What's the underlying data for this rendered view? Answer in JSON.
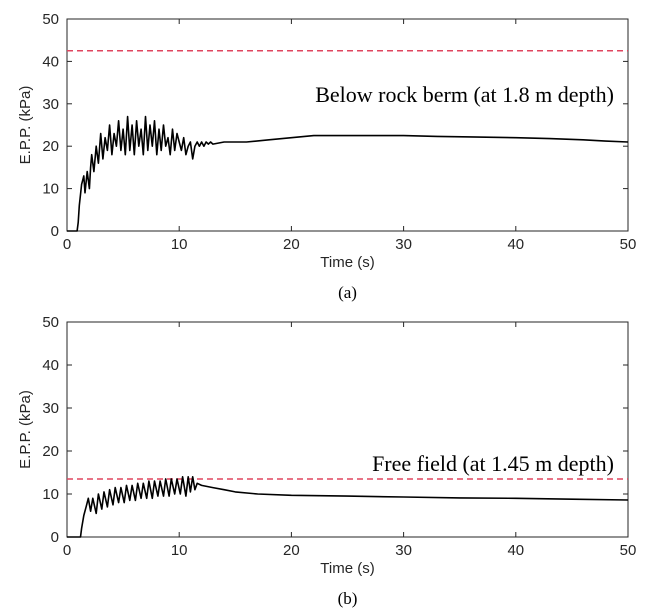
{
  "chart_data": [
    {
      "type": "line",
      "panel_id": "a",
      "caption": "(a)",
      "annotation": "Below rock berm (at 1.8 m depth)",
      "xlabel": "Time (s)",
      "ylabel": "E.P.P. (kPa)",
      "xlim": [
        0,
        50
      ],
      "ylim": [
        0,
        50
      ],
      "xticks": [
        "0",
        "10",
        "20",
        "30",
        "40",
        "50"
      ],
      "yticks": [
        "0",
        "10",
        "20",
        "30",
        "40",
        "50"
      ],
      "grid": false,
      "colors": {
        "series": "#000000",
        "reference": "#e0455f"
      },
      "reference_line": {
        "y": 42.5,
        "style": "dashed"
      },
      "series": [
        {
          "x": [
            0,
            0.9,
            1.0,
            1.1,
            1.3,
            1.5,
            1.6,
            1.8,
            2.0,
            2.1,
            2.2,
            2.4,
            2.6,
            2.8,
            3.0,
            3.2,
            3.4,
            3.6,
            3.8,
            4.0,
            4.2,
            4.4,
            4.6,
            4.8,
            5.0,
            5.2,
            5.4,
            5.6,
            5.8,
            6.0,
            6.2,
            6.4,
            6.6,
            6.8,
            7.0,
            7.2,
            7.4,
            7.6,
            7.8,
            8.0,
            8.2,
            8.4,
            8.6,
            8.8,
            9.0,
            9.2,
            9.4,
            9.6,
            9.8,
            10.0,
            10.2,
            10.4,
            10.6,
            10.8,
            11.0,
            11.2,
            11.4,
            11.6,
            11.8,
            12.0,
            12.2,
            12.4,
            12.6,
            12.8,
            13.0,
            14,
            15,
            16,
            18,
            20,
            22,
            25,
            28,
            30,
            33,
            36,
            40,
            43,
            46,
            48,
            50
          ],
          "y": [
            0,
            0,
            2,
            6,
            11,
            13,
            9,
            14,
            10,
            15,
            18,
            14,
            20,
            16,
            23,
            17,
            22,
            19,
            25,
            18,
            23,
            20,
            26,
            19,
            24,
            18,
            27,
            19,
            25,
            18,
            26,
            20,
            24,
            18,
            27,
            19,
            25,
            20,
            26,
            18,
            24,
            19,
            25,
            20,
            22,
            18,
            24,
            19,
            23,
            21,
            19,
            22,
            18,
            20,
            21,
            17,
            20,
            21,
            20,
            21,
            20,
            21,
            20.5,
            21,
            20.5,
            21,
            21,
            21,
            21.5,
            22,
            22.5,
            22.5,
            22.5,
            22.5,
            22.3,
            22.2,
            22,
            21.8,
            21.5,
            21.2,
            21
          ]
        }
      ]
    },
    {
      "type": "line",
      "panel_id": "b",
      "caption": "(b)",
      "annotation": "Free field (at 1.45 m depth)",
      "xlabel": "Time (s)",
      "ylabel": "E.P.P. (kPa)",
      "xlim": [
        0,
        50
      ],
      "ylim": [
        0,
        50
      ],
      "xticks": [
        "0",
        "10",
        "20",
        "30",
        "40",
        "50"
      ],
      "yticks": [
        "0",
        "10",
        "20",
        "30",
        "40",
        "50"
      ],
      "grid": false,
      "colors": {
        "series": "#000000",
        "reference": "#e0455f"
      },
      "reference_line": {
        "y": 13.5,
        "style": "dashed"
      },
      "series": [
        {
          "x": [
            0,
            1.2,
            1.3,
            1.5,
            1.7,
            1.9,
            2.1,
            2.3,
            2.6,
            2.8,
            3.1,
            3.3,
            3.6,
            3.8,
            4.1,
            4.3,
            4.6,
            4.8,
            5.1,
            5.3,
            5.6,
            5.8,
            6.1,
            6.3,
            6.6,
            6.8,
            7.1,
            7.3,
            7.6,
            7.8,
            8.1,
            8.3,
            8.6,
            8.8,
            9.1,
            9.3,
            9.6,
            9.8,
            10.1,
            10.3,
            10.6,
            10.8,
            11.0,
            11.2,
            11.4,
            11.6,
            12,
            13,
            14,
            15,
            17,
            20,
            25,
            30,
            35,
            40,
            45,
            50
          ],
          "y": [
            0,
            0,
            2,
            5,
            7,
            9,
            6,
            9,
            5.5,
            10,
            6.5,
            10.5,
            7,
            11,
            7.5,
            11.5,
            8,
            11.5,
            8,
            12,
            8.5,
            12,
            8.5,
            12.5,
            9,
            12.5,
            9,
            13,
            9,
            13,
            9.5,
            13,
            9.5,
            13.5,
            9.5,
            13.5,
            10,
            13.5,
            10,
            14,
            9.5,
            14,
            10.5,
            14,
            11,
            12.5,
            12,
            11.5,
            11,
            10.5,
            10,
            9.7,
            9.5,
            9.3,
            9.1,
            9.0,
            8.8,
            8.6
          ]
        }
      ]
    }
  ]
}
